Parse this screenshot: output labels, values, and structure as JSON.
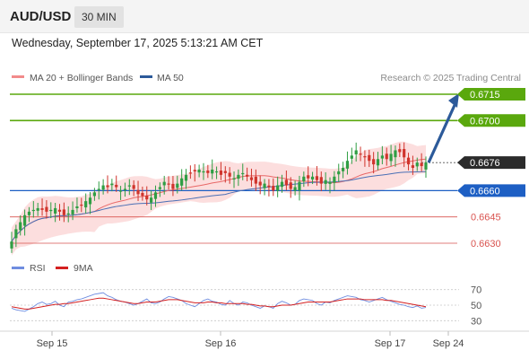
{
  "header": {
    "pair": "AUD/USD",
    "timeframe": "30 MIN",
    "datetime": "Wednesday, September 17, 2025 5:13:21 AM CET"
  },
  "legend": {
    "ma20_label": "MA 20 + Bollinger Bands",
    "ma50_label": "MA 50",
    "credit": "Research © 2025 Trading Central",
    "rsi_label": "RSI",
    "ma9_label": "9MA"
  },
  "colors": {
    "candle_up": "#2f9e44",
    "candle_down": "#d0342c",
    "bollinger_fill": "#fbd8d8",
    "ma20": "#e86868",
    "ma50": "#4a6fb5",
    "resistance": "#5aa80d",
    "pivot": "#1d5fc4",
    "support": "#d9534f",
    "arrow": "#2c5a9a",
    "rsi": "#6f8de0",
    "rsi_ma": "#d42020"
  },
  "chart_data": {
    "type": "candlestick",
    "price_range": [
      0.6622,
      0.6722
    ],
    "levels": [
      {
        "value": 0.6715,
        "label": "0.6715",
        "kind": "resistance"
      },
      {
        "value": 0.67,
        "label": "0.6700",
        "kind": "resistance"
      },
      {
        "value": 0.666,
        "label": "0.6660",
        "kind": "pivot"
      },
      {
        "value": 0.6645,
        "label": "0.6645",
        "kind": "support"
      },
      {
        "value": 0.663,
        "label": "0.6630",
        "kind": "support"
      }
    ],
    "current_price": {
      "value": 0.6676,
      "label": "0.6676"
    },
    "x_ticks": [
      "Sep 15",
      "Sep 16",
      "Sep 17",
      "Sep 24"
    ],
    "rsi_ticks": [
      70,
      50,
      30
    ],
    "rsi_range": [
      20,
      80
    ],
    "forecast_arrow": {
      "from": 0.6676,
      "to": 0.6715
    },
    "closes": [
      0.6631,
      0.6638,
      0.6642,
      0.6646,
      0.6648,
      0.6649,
      0.665,
      0.6649,
      0.6648,
      0.6649,
      0.665,
      0.6648,
      0.6646,
      0.6647,
      0.6649,
      0.6651,
      0.6652,
      0.6654,
      0.6656,
      0.6659,
      0.6661,
      0.6663,
      0.6662,
      0.6664,
      0.6662,
      0.666,
      0.6661,
      0.6663,
      0.6661,
      0.6658,
      0.6657,
      0.6655,
      0.6656,
      0.6659,
      0.6662,
      0.6665,
      0.6664,
      0.6661,
      0.6664,
      0.6667,
      0.6669,
      0.667,
      0.6671,
      0.6672,
      0.6671,
      0.667,
      0.6672,
      0.6671,
      0.6669,
      0.667,
      0.6668,
      0.6667,
      0.6669,
      0.667,
      0.6668,
      0.6666,
      0.6664,
      0.6663,
      0.6664,
      0.6662,
      0.666,
      0.6663,
      0.6665,
      0.6663,
      0.6661,
      0.6662,
      0.6665,
      0.6668,
      0.6667,
      0.6668,
      0.6666,
      0.6664,
      0.6666,
      0.6665,
      0.6668,
      0.6671,
      0.6673,
      0.6677,
      0.668,
      0.6683,
      0.6681,
      0.6679,
      0.6677,
      0.6675,
      0.6678,
      0.668,
      0.6678,
      0.6681,
      0.6683,
      0.6682,
      0.6679,
      0.6675,
      0.6673,
      0.6676,
      0.6674,
      0.6676
    ],
    "rsi": [
      46,
      44,
      43,
      42,
      45,
      48,
      52,
      54,
      51,
      52,
      55,
      50,
      48,
      54,
      55,
      57,
      58,
      60,
      62,
      64,
      65,
      66,
      62,
      60,
      57,
      55,
      54,
      52,
      50,
      52,
      55,
      58,
      53,
      52,
      54,
      58,
      61,
      60,
      58,
      56,
      52,
      50,
      48,
      52,
      56,
      58,
      55,
      54,
      51,
      50,
      56,
      52,
      50,
      54,
      53,
      50,
      48,
      46,
      49,
      48,
      46,
      52,
      55,
      53,
      50,
      51,
      56,
      58,
      57,
      56,
      52,
      50,
      54,
      53,
      56,
      58,
      60,
      62,
      61,
      60,
      57,
      56,
      54,
      56,
      58,
      60,
      57,
      55,
      53,
      51,
      50,
      48,
      47,
      49,
      46,
      47
    ],
    "rsi_ma": [
      48,
      47,
      46,
      45,
      45,
      46,
      47,
      48,
      49,
      50,
      51,
      51,
      52,
      52,
      53,
      54,
      55,
      56,
      57,
      58,
      59,
      59,
      58,
      57,
      56,
      55,
      54,
      53,
      52,
      52,
      53,
      54,
      54,
      54,
      55,
      56,
      57,
      57,
      57,
      56,
      55,
      54,
      53,
      53,
      53,
      54,
      54,
      53,
      53,
      52,
      52,
      52,
      52,
      52,
      51,
      51,
      50,
      49,
      49,
      48,
      48,
      49,
      50,
      50,
      50,
      51,
      52,
      53,
      54,
      54,
      54,
      54,
      54,
      54,
      55,
      56,
      57,
      58,
      58,
      58,
      58,
      57,
      57,
      57,
      57,
      57,
      56,
      56,
      55,
      54,
      53,
      52,
      51,
      50,
      49,
      48
    ]
  }
}
